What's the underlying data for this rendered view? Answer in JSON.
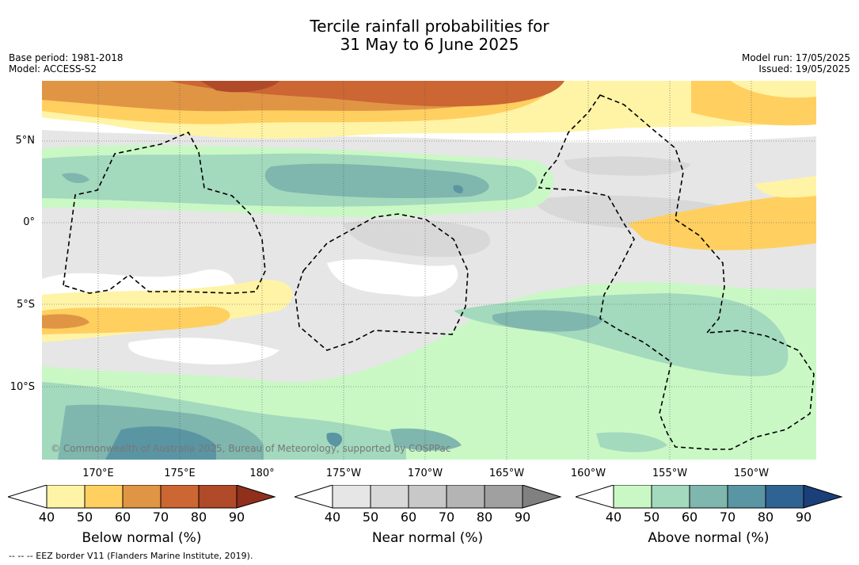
{
  "title": {
    "line1": "Tercile rainfall probabilities for",
    "line2": "31 May to 6 June 2025"
  },
  "meta": {
    "base_period": "Base period: 1981-2018",
    "model": "Model: ACCESS-S2",
    "model_run": "Model run: 17/05/2025",
    "issued": "Issued: 19/05/2025"
  },
  "map": {
    "lat_labels": [
      "5°N",
      "0°",
      "5°S",
      "10°S"
    ],
    "lon_labels": [
      "170°E",
      "175°E",
      "180°",
      "175°W",
      "170°W",
      "165°W",
      "160°W",
      "155°W",
      "150°W"
    ],
    "copyright": "© Commonwealth of Australia 2025, Bureau of Meteorology, supported by COSPPac"
  },
  "legends": {
    "below": {
      "label": "Below normal (%)",
      "colors": [
        "#fff3a6",
        "#ffcf60",
        "#e09545",
        "#cc6633",
        "#b04a28",
        "#8f2f1c"
      ]
    },
    "near": {
      "label": "Near normal (%)",
      "colors": [
        "#e6e6e6",
        "#d8d8d8",
        "#c8c8c8",
        "#b4b4b4",
        "#a0a0a0",
        "#808080"
      ]
    },
    "above": {
      "label": "Above normal (%)",
      "colors": [
        "#c9f8c5",
        "#a3d9bd",
        "#7fb6ad",
        "#5a95a3",
        "#2f6394",
        "#1b3f78"
      ]
    },
    "ticks": [
      "40",
      "50",
      "60",
      "70",
      "80",
      "90"
    ]
  },
  "footer": "--  --  -- EEZ border V11 (Flanders Marine Institute, 2019)."
}
